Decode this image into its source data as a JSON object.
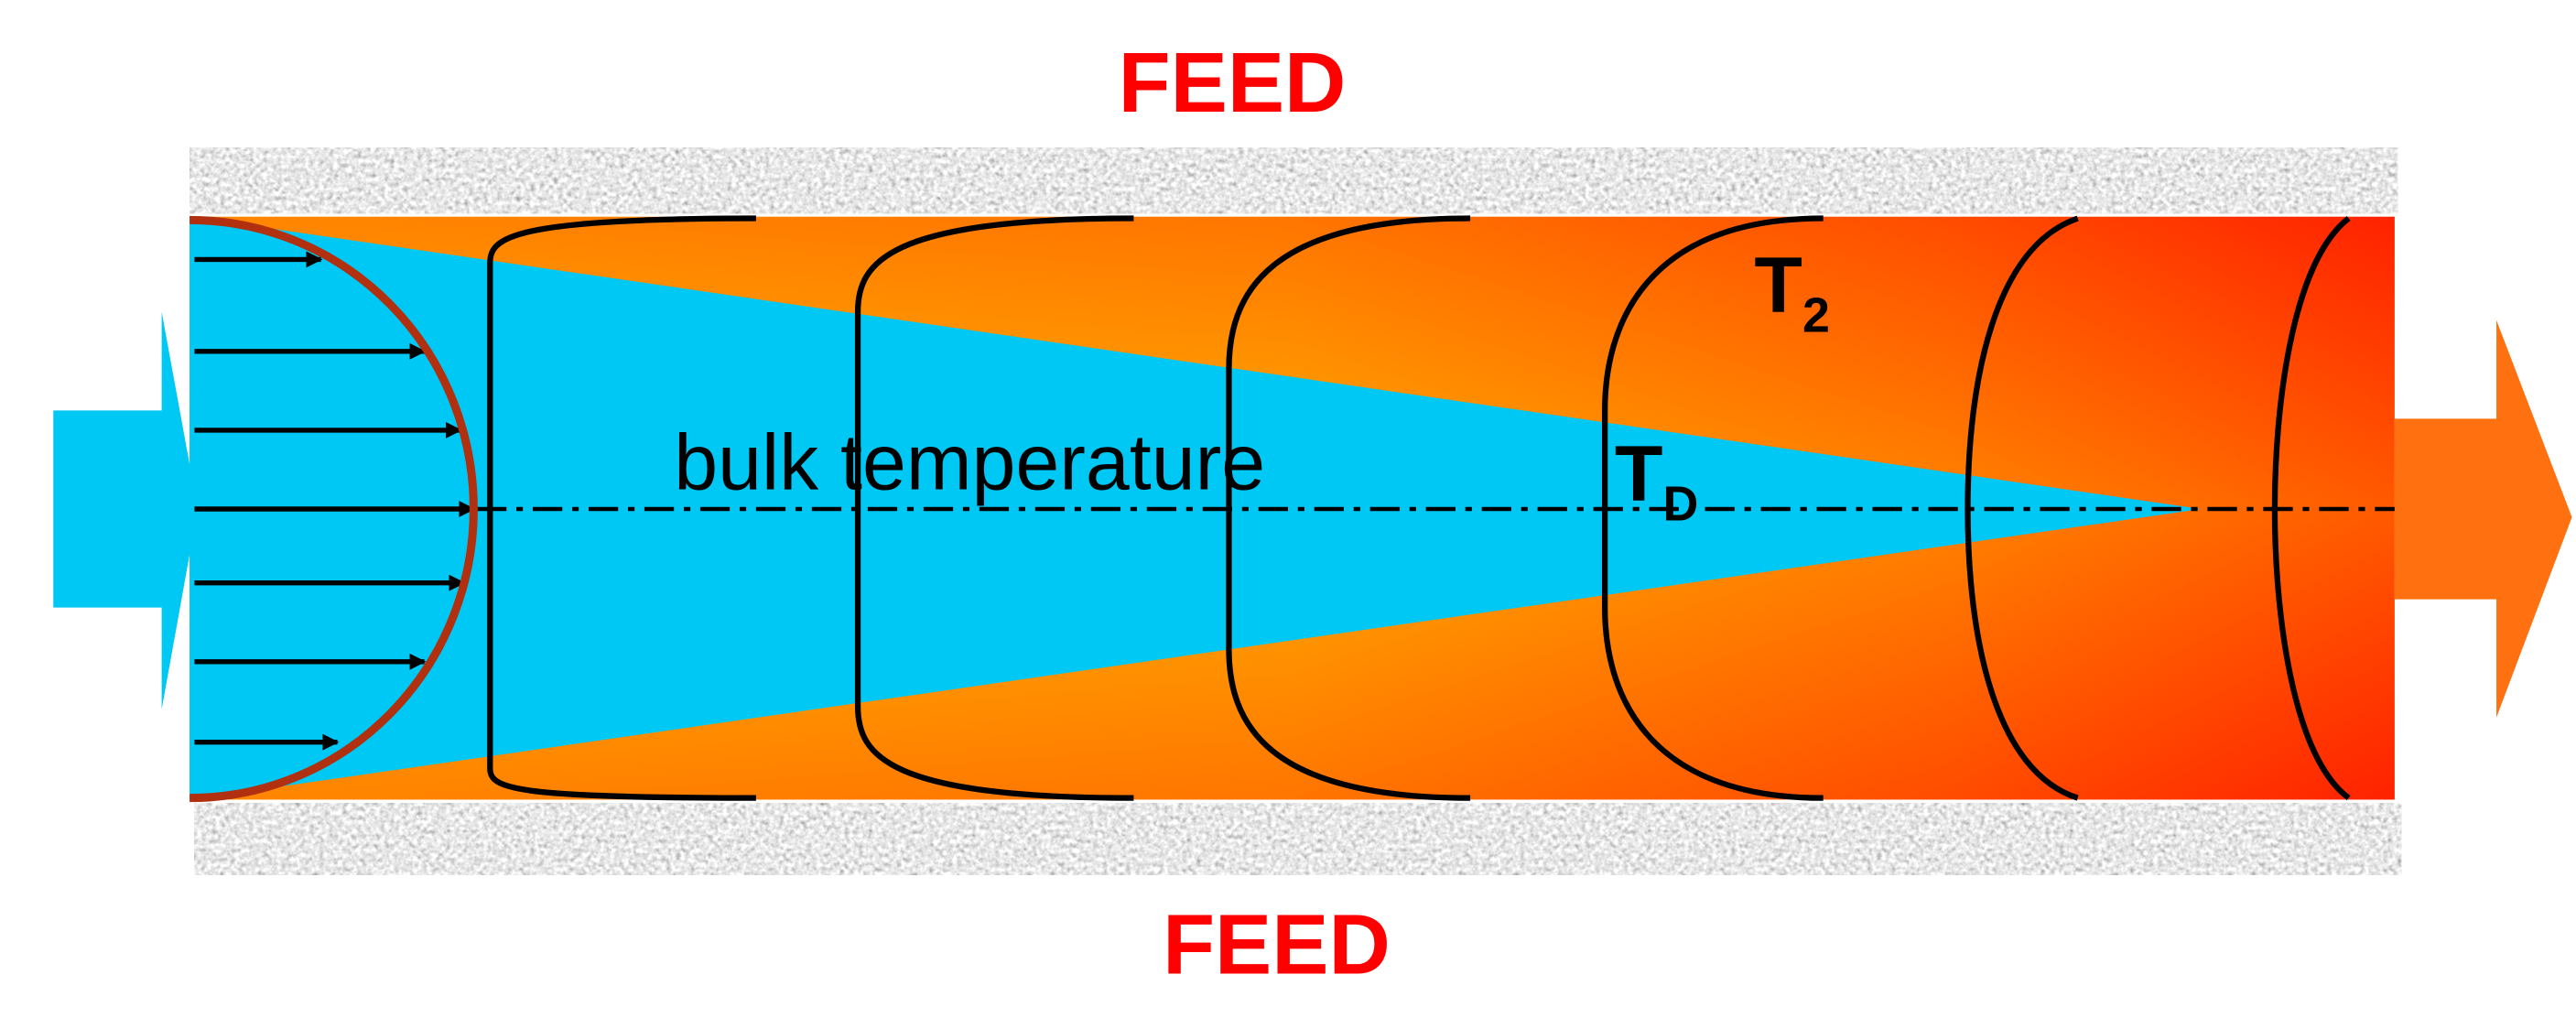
{
  "labels": {
    "feed_top": "FEED",
    "feed_bottom": "FEED",
    "bulk": "bulk temperature",
    "t2": {
      "main": "T",
      "sub": "2"
    },
    "td": {
      "main": "T",
      "sub": "D"
    }
  }
}
